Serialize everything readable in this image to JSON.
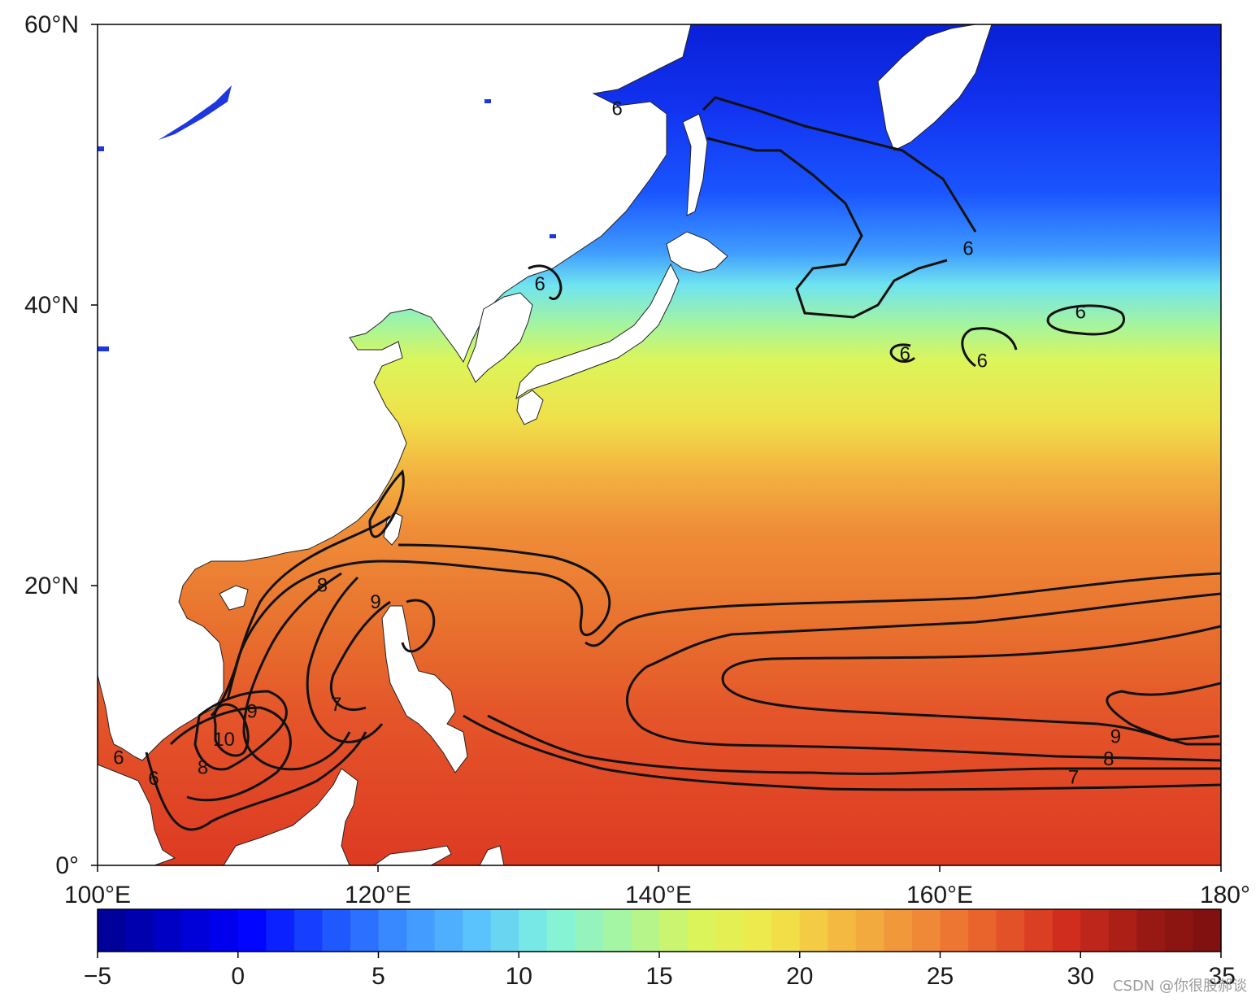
{
  "chart_data": {
    "type": "heatmap",
    "x_range": [
      100,
      180
    ],
    "y_range": [
      0,
      60
    ],
    "x_ticks": [
      "100°E",
      "120°E",
      "140°E",
      "160°E",
      "180°"
    ],
    "y_ticks": [
      "60°N",
      "40°N",
      "20°N",
      "0°"
    ],
    "colorbar": {
      "range": [
        -5,
        35
      ],
      "ticks": [
        "−5",
        "0",
        "5",
        "10",
        "15",
        "20",
        "25",
        "30",
        "35"
      ],
      "colormap": [
        "#00008f",
        "#0000c8",
        "#0000ff",
        "#1a4cff",
        "#3a8cff",
        "#58bfff",
        "#7ff2e0",
        "#a6f5a0",
        "#d9f55a",
        "#f2e84a",
        "#f4b63f",
        "#ef8c38",
        "#e85a2a",
        "#cf2a1e",
        "#9a1a14",
        "#7a0f0f"
      ]
    },
    "contour_levels": [
      6,
      7,
      8,
      9,
      10
    ],
    "contour_labels": [
      {
        "lon": 137,
        "lat": 54,
        "text": "6"
      },
      {
        "lon": 162,
        "lat": 44,
        "text": "6"
      },
      {
        "lon": 170,
        "lat": 39.5,
        "text": "6"
      },
      {
        "lon": 157.5,
        "lat": 36.5,
        "text": "6"
      },
      {
        "lon": 163,
        "lat": 36,
        "text": "6"
      },
      {
        "lon": 131.5,
        "lat": 41.5,
        "text": "6"
      },
      {
        "lon": 116,
        "lat": 20,
        "text": "8"
      },
      {
        "lon": 119.8,
        "lat": 18.8,
        "text": "9"
      },
      {
        "lon": 111,
        "lat": 11,
        "text": "9"
      },
      {
        "lon": 109,
        "lat": 9,
        "text": "10"
      },
      {
        "lon": 107.5,
        "lat": 7,
        "text": "8"
      },
      {
        "lon": 104,
        "lat": 6.2,
        "text": "6"
      },
      {
        "lon": 101.5,
        "lat": 7.7,
        "text": "6"
      },
      {
        "lon": 117,
        "lat": 11.5,
        "text": "7"
      },
      {
        "lon": 172.5,
        "lat": 9.2,
        "text": "9"
      },
      {
        "lon": 172,
        "lat": 7.6,
        "text": "8"
      },
      {
        "lon": 169.5,
        "lat": 6.3,
        "text": "7"
      }
    ]
  },
  "watermark": "CSDN @你很股郝谈"
}
